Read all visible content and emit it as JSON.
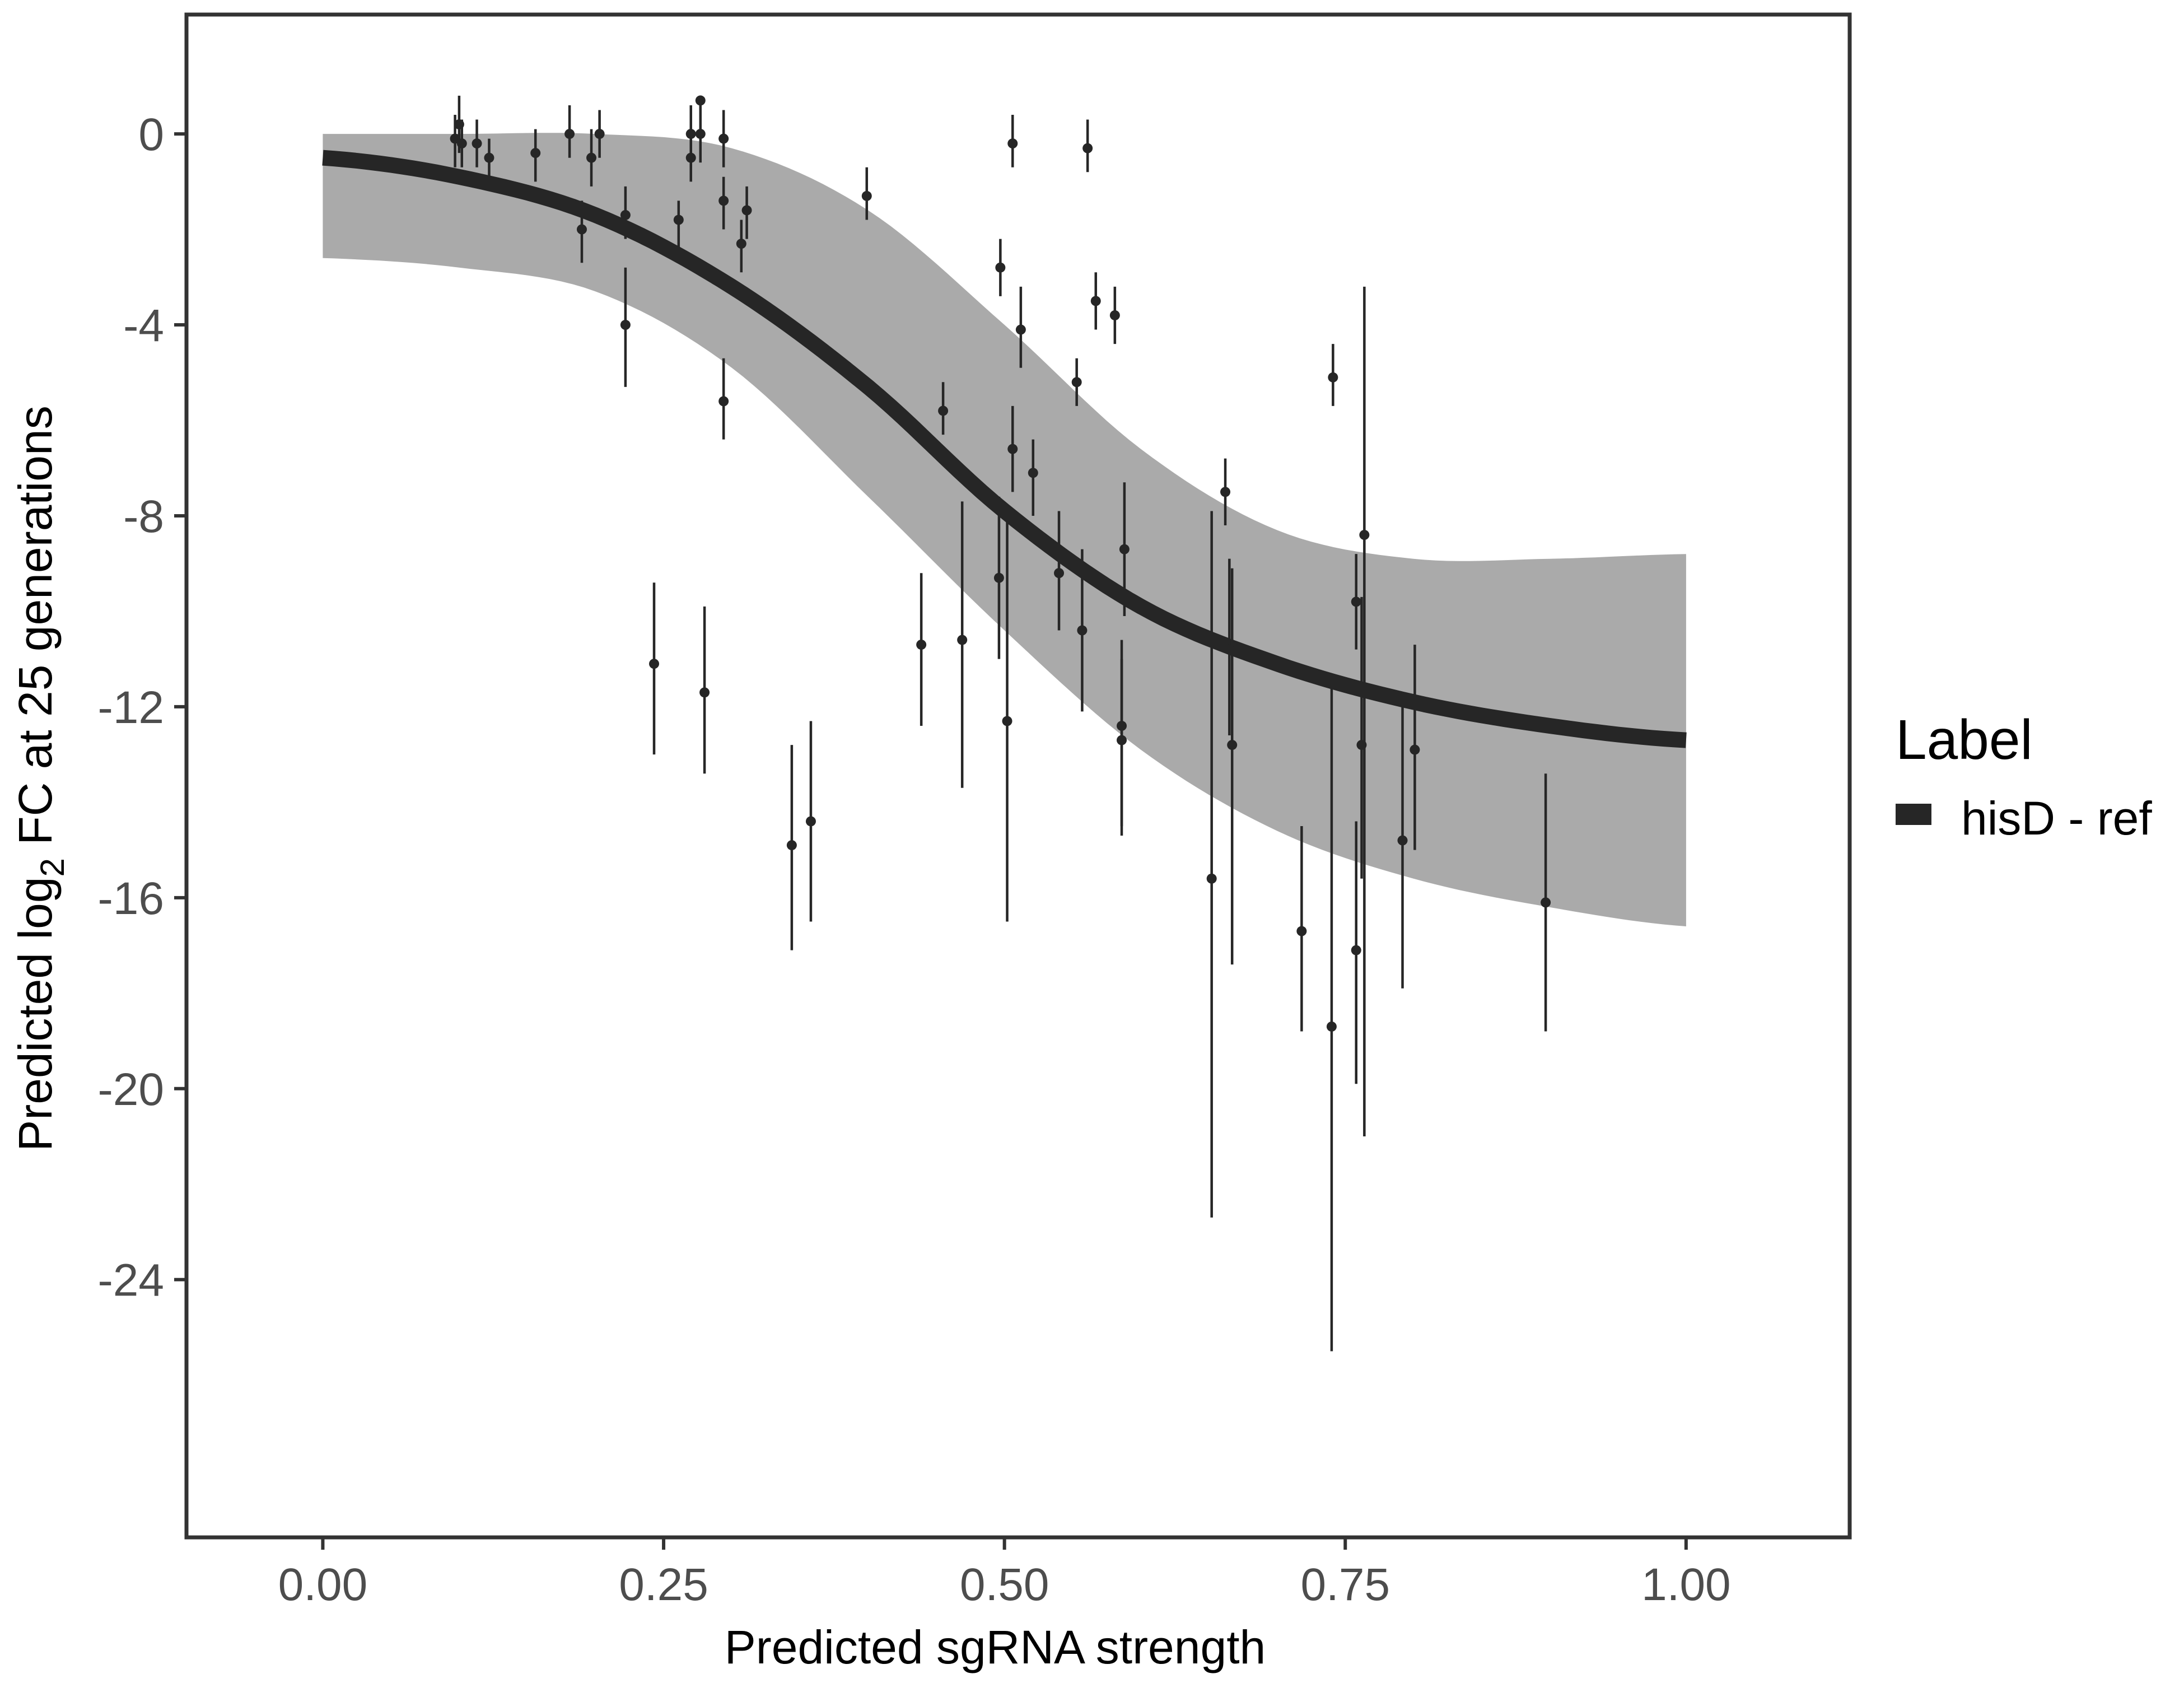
{
  "chart_data": {
    "type": "scatter",
    "xlabel": "Predicted sgRNA strength",
    "ylabel": {
      "prefix": "Predicted  log",
      "subscript": "2",
      "suffix": " FC at 25 generations"
    },
    "xlim": [
      -0.1,
      1.12
    ],
    "ylim": [
      -29.4,
      2.5
    ],
    "x_ticks": [
      0.0,
      0.25,
      0.5,
      0.75,
      1.0
    ],
    "x_tick_labels": [
      "0.00",
      "0.25",
      "0.50",
      "0.75",
      "1.00"
    ],
    "y_ticks": [
      0,
      -4,
      -8,
      -12,
      -16,
      -20,
      -24
    ],
    "y_tick_labels": [
      "0",
      "-4",
      "-8",
      "-12",
      "-16",
      "-20",
      "-24"
    ],
    "grid": false,
    "legend": {
      "title": "Label",
      "position": "right",
      "entries": [
        {
          "label": "hisD - ref",
          "color": "#262626"
        }
      ]
    },
    "colors": {
      "fit_line": "#262626",
      "uncertainty_band": "#aaaaaa",
      "points": "#262626",
      "panel_border": "#333333",
      "tick_label": "#4d4d4d"
    },
    "fitted_curve": {
      "x": [
        0.0,
        0.1,
        0.2,
        0.3,
        0.4,
        0.5,
        0.6,
        0.7,
        0.8,
        0.9,
        1.0
      ],
      "y": [
        -0.5,
        -0.9,
        -1.7,
        -3.2,
        -5.3,
        -7.9,
        -9.9,
        -11.1,
        -11.9,
        -12.4,
        -12.7
      ]
    },
    "uncertainty_band": {
      "x": [
        0.0,
        0.1,
        0.2,
        0.3,
        0.4,
        0.5,
        0.6,
        0.7,
        0.8,
        0.9,
        1.0
      ],
      "lower": [
        -2.6,
        -2.8,
        -3.3,
        -4.9,
        -7.6,
        -10.4,
        -12.9,
        -14.6,
        -15.6,
        -16.2,
        -16.6
      ],
      "upper": [
        0.0,
        0.0,
        0.0,
        -0.3,
        -1.6,
        -4.0,
        -6.6,
        -8.3,
        -8.9,
        -8.9,
        -8.8
      ]
    },
    "points": [
      {
        "x": 0.097,
        "y": -0.1,
        "lo": -0.7,
        "hi": 0.4
      },
      {
        "x": 0.1,
        "y": 0.2,
        "lo": -0.4,
        "hi": 0.8
      },
      {
        "x": 0.102,
        "y": -0.2,
        "lo": -0.7,
        "hi": 0.3
      },
      {
        "x": 0.113,
        "y": -0.2,
        "lo": -0.7,
        "hi": 0.3
      },
      {
        "x": 0.122,
        "y": -0.5,
        "lo": -0.9,
        "hi": -0.1
      },
      {
        "x": 0.156,
        "y": -0.4,
        "lo": -1.0,
        "hi": 0.1
      },
      {
        "x": 0.181,
        "y": 0.0,
        "lo": -0.5,
        "hi": 0.6
      },
      {
        "x": 0.19,
        "y": -2.0,
        "lo": -2.7,
        "hi": -1.4
      },
      {
        "x": 0.197,
        "y": -0.5,
        "lo": -1.1,
        "hi": 0.1
      },
      {
        "x": 0.203,
        "y": 0.0,
        "lo": -0.5,
        "hi": 0.5
      },
      {
        "x": 0.222,
        "y": -1.7,
        "lo": -2.2,
        "hi": -1.1
      },
      {
        "x": 0.222,
        "y": -4.0,
        "lo": -5.3,
        "hi": -2.8
      },
      {
        "x": 0.243,
        "y": -11.1,
        "lo": -13.0,
        "hi": -9.4
      },
      {
        "x": 0.261,
        "y": -1.8,
        "lo": -2.4,
        "hi": -1.4
      },
      {
        "x": 0.27,
        "y": 0.0,
        "lo": -0.7,
        "hi": 0.6
      },
      {
        "x": 0.27,
        "y": -0.5,
        "lo": -1.0,
        "hi": 0.1
      },
      {
        "x": 0.277,
        "y": 0.7,
        "lo": 0.7,
        "hi": 0.7
      },
      {
        "x": 0.277,
        "y": 0.0,
        "lo": -0.6,
        "hi": 0.6
      },
      {
        "x": 0.28,
        "y": -11.7,
        "lo": -13.4,
        "hi": -9.9
      },
      {
        "x": 0.294,
        "y": -1.4,
        "lo": -2.0,
        "hi": -0.9
      },
      {
        "x": 0.294,
        "y": -0.1,
        "lo": -0.7,
        "hi": 0.5
      },
      {
        "x": 0.294,
        "y": -5.6,
        "lo": -6.4,
        "hi": -4.7
      },
      {
        "x": 0.307,
        "y": -2.3,
        "lo": -2.9,
        "hi": -1.8
      },
      {
        "x": 0.311,
        "y": -1.6,
        "lo": -2.2,
        "hi": -1.1
      },
      {
        "x": 0.344,
        "y": -14.9,
        "lo": -17.1,
        "hi": -12.8
      },
      {
        "x": 0.358,
        "y": -14.4,
        "lo": -16.5,
        "hi": -12.3
      },
      {
        "x": 0.399,
        "y": -1.3,
        "lo": -1.8,
        "hi": -0.7
      },
      {
        "x": 0.439,
        "y": -10.7,
        "lo": -12.4,
        "hi": -9.2
      },
      {
        "x": 0.455,
        "y": -5.8,
        "lo": -6.3,
        "hi": -5.2
      },
      {
        "x": 0.469,
        "y": -10.6,
        "lo": -13.7,
        "hi": -7.7
      },
      {
        "x": 0.496,
        "y": -9.3,
        "lo": -11.0,
        "hi": -7.6
      },
      {
        "x": 0.497,
        "y": -2.8,
        "lo": -3.4,
        "hi": -2.2
      },
      {
        "x": 0.502,
        "y": -12.3,
        "lo": -16.5,
        "hi": -8.0
      },
      {
        "x": 0.506,
        "y": -6.6,
        "lo": -7.5,
        "hi": -5.7
      },
      {
        "x": 0.506,
        "y": -0.2,
        "lo": -0.7,
        "hi": 0.4
      },
      {
        "x": 0.512,
        "y": -4.1,
        "lo": -4.9,
        "hi": -3.2
      },
      {
        "x": 0.521,
        "y": -7.1,
        "lo": -8.0,
        "hi": -6.4
      },
      {
        "x": 0.54,
        "y": -9.2,
        "lo": -10.4,
        "hi": -7.9
      },
      {
        "x": 0.553,
        "y": -5.2,
        "lo": -5.7,
        "hi": -4.7
      },
      {
        "x": 0.557,
        "y": -10.4,
        "lo": -12.1,
        "hi": -8.7
      },
      {
        "x": 0.561,
        "y": -0.3,
        "lo": -0.8,
        "hi": 0.3
      },
      {
        "x": 0.567,
        "y": -3.5,
        "lo": -4.1,
        "hi": -2.9
      },
      {
        "x": 0.581,
        "y": -3.8,
        "lo": -4.4,
        "hi": -3.2
      },
      {
        "x": 0.586,
        "y": -12.4,
        "lo": -14.7,
        "hi": -10.6
      },
      {
        "x": 0.586,
        "y": -12.7,
        "lo": -14.5,
        "hi": -11.0
      },
      {
        "x": 0.588,
        "y": -8.7,
        "lo": -10.1,
        "hi": -7.3
      },
      {
        "x": 0.652,
        "y": -15.6,
        "lo": -22.7,
        "hi": -7.9
      },
      {
        "x": 0.662,
        "y": -7.5,
        "lo": -8.2,
        "hi": -6.8
      },
      {
        "x": 0.665,
        "y": -10.8,
        "lo": -12.6,
        "hi": -8.9
      },
      {
        "x": 0.667,
        "y": -12.8,
        "lo": -17.4,
        "hi": -9.1
      },
      {
        "x": 0.718,
        "y": -16.7,
        "lo": -18.8,
        "hi": -14.5
      },
      {
        "x": 0.74,
        "y": -18.7,
        "lo": -25.5,
        "hi": -11.6
      },
      {
        "x": 0.741,
        "y": -5.1,
        "lo": -5.7,
        "hi": -4.4
      },
      {
        "x": 0.758,
        "y": -9.8,
        "lo": -10.8,
        "hi": -8.8
      },
      {
        "x": 0.758,
        "y": -17.1,
        "lo": -19.9,
        "hi": -14.4
      },
      {
        "x": 0.762,
        "y": -12.8,
        "lo": -15.6,
        "hi": -9.7
      },
      {
        "x": 0.764,
        "y": -8.4,
        "lo": -21.0,
        "hi": -3.2
      },
      {
        "x": 0.792,
        "y": -14.8,
        "lo": -17.9,
        "hi": -11.7
      },
      {
        "x": 0.801,
        "y": -12.9,
        "lo": -15.0,
        "hi": -10.7
      },
      {
        "x": 0.897,
        "y": -16.1,
        "lo": -18.8,
        "hi": -13.4
      }
    ]
  }
}
